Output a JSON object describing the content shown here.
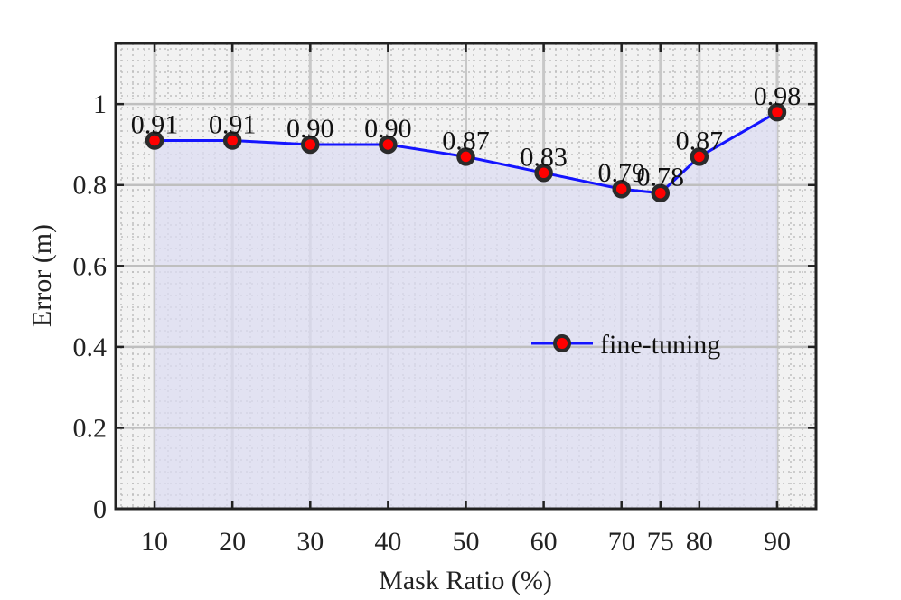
{
  "chart_data": {
    "type": "line",
    "title": "",
    "xlabel": "Mask Ratio (%)",
    "ylabel": "Error (m)",
    "x": [
      10,
      20,
      30,
      40,
      50,
      60,
      70,
      75,
      80,
      90
    ],
    "x_tick_labels": [
      "10",
      "20",
      "30",
      "40",
      "50",
      "60",
      "70",
      "75",
      "80",
      "90"
    ],
    "xlim": [
      5,
      95
    ],
    "ylim": [
      0,
      1.15
    ],
    "y_ticks": [
      0,
      0.2,
      0.4,
      0.6,
      0.8,
      1
    ],
    "y_tick_labels": [
      "0",
      "0.2",
      "0.4",
      "0.6",
      "0.8",
      "1"
    ],
    "grid": true,
    "area_fill": true,
    "legend_position": "right",
    "series": [
      {
        "name": "fine-tuning",
        "values": [
          0.91,
          0.91,
          0.9,
          0.9,
          0.87,
          0.83,
          0.79,
          0.78,
          0.87,
          0.98
        ],
        "data_labels": [
          "0.91",
          "0.91",
          "0.90",
          "0.90",
          "0.87",
          "0.83",
          "0.79",
          "0.78",
          "0.87",
          "0.98"
        ],
        "line_color": "#1414ff",
        "marker_fill": "#ff0000",
        "marker_edge": "#2b2b2b"
      }
    ],
    "colors": {
      "background": "#f2f2f2",
      "area": "#dcdcf2",
      "grid": "#bdbdbd",
      "axis": "#222222"
    }
  }
}
